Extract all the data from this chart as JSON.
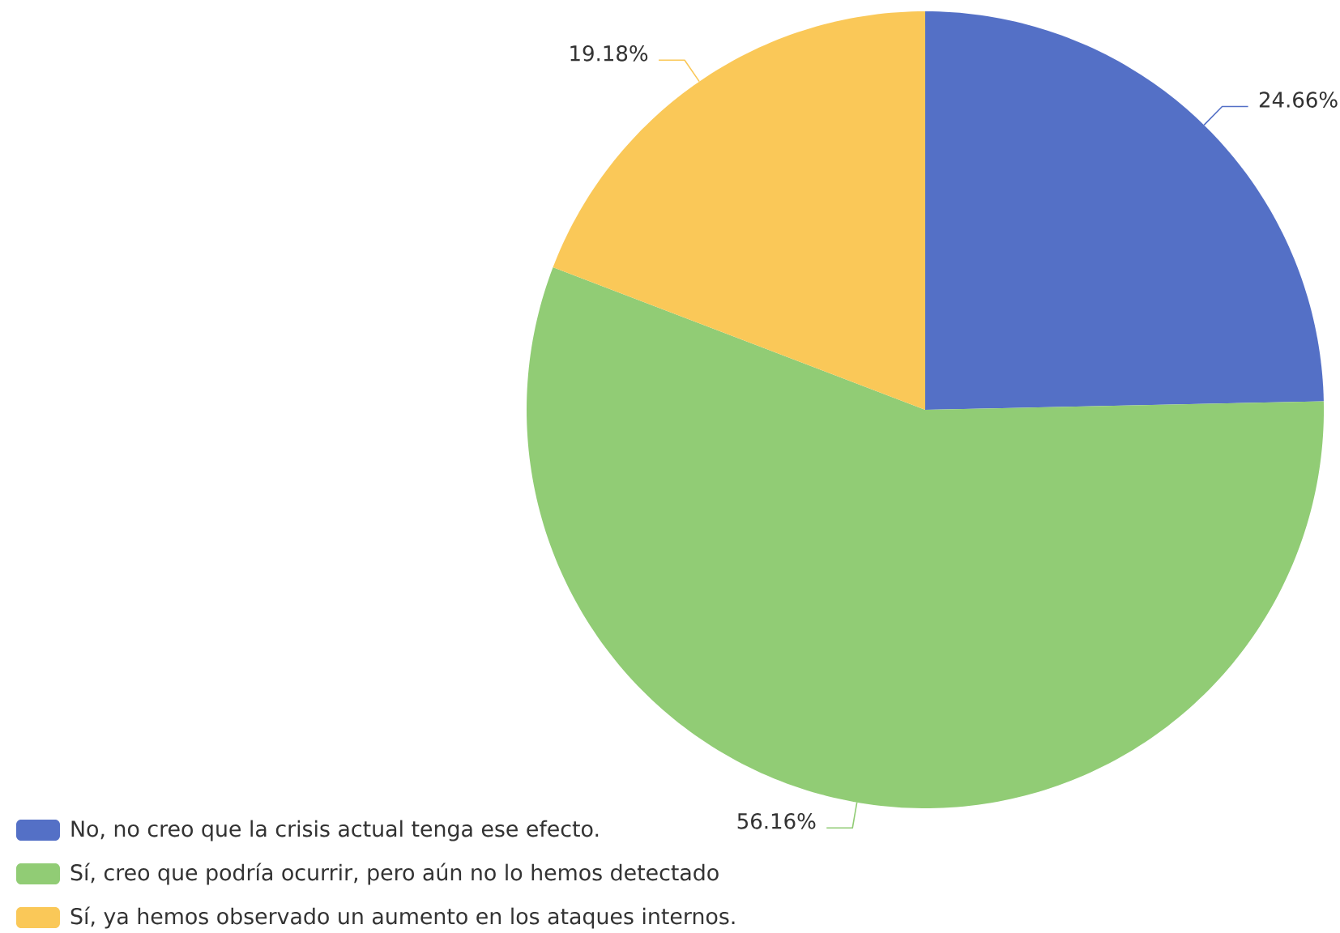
{
  "chart_data": {
    "type": "pie",
    "categories": [
      "No, no creo que la crisis actual tenga ese efecto.",
      "Sí, creo que podría ocurrir, pero aún no lo hemos detectado",
      "Sí, ya hemos observado un aumento en los ataques internos."
    ],
    "values": [
      24.66,
      56.16,
      19.18
    ],
    "colors": [
      "#5470c6",
      "#91cc75",
      "#fac858"
    ],
    "value_labels": [
      "24.66%",
      "56.16%",
      "19.18%"
    ],
    "legend": "bottom left"
  }
}
